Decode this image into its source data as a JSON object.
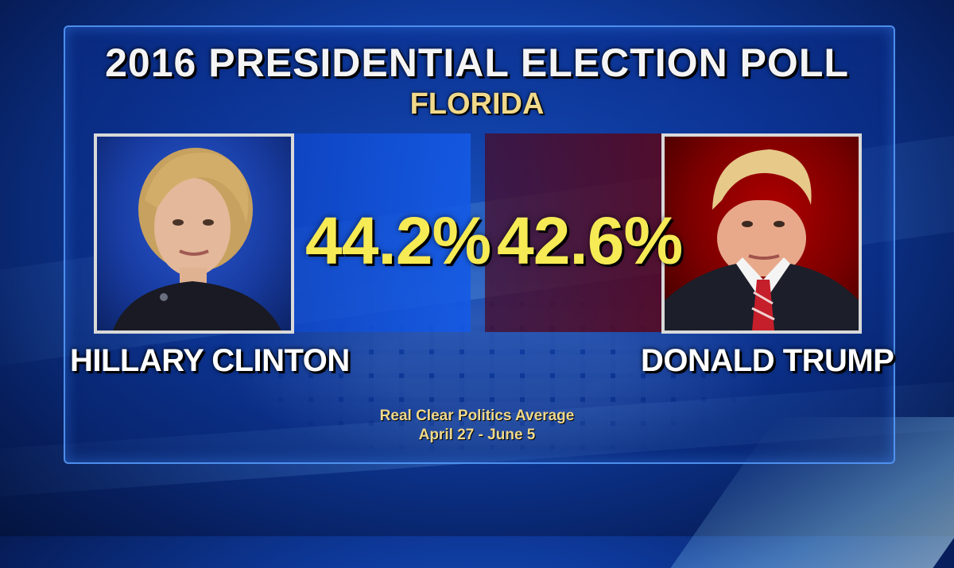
{
  "title": "2016 PRESIDENTIAL ELECTION POLL",
  "subtitle": "FLORIDA",
  "candidates": [
    {
      "name": "HILLARY CLINTON",
      "percent": "44.2%",
      "color": "#1f5ee6"
    },
    {
      "name": "DONALD TRUMP",
      "percent": "42.6%",
      "color": "#a00000"
    }
  ],
  "source": {
    "line1": "Real Clear Politics Average",
    "line2": "April 27 - June 5"
  },
  "colors": {
    "percent": "#f6ea55",
    "subtitle": "#f0d98a",
    "background": "#0e3a9c"
  }
}
